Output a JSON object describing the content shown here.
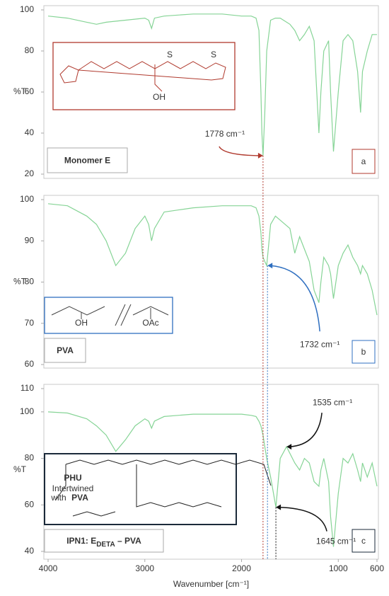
{
  "chart_data": [
    {
      "type": "line",
      "ylabel": "%T",
      "panel_letter": "a",
      "label_parts": [
        "Monomer E"
      ],
      "accent_color": "#b03a2e",
      "xlim": [
        4000,
        600
      ],
      "ylim": [
        20,
        100
      ],
      "yticks": [
        100,
        80,
        60,
        40,
        20
      ],
      "structure_labels": [
        "S",
        "S",
        "OH"
      ],
      "x": [
        4000,
        3800,
        3600,
        3500,
        3400,
        3200,
        3000,
        2960,
        2930,
        2900,
        2800,
        2500,
        2200,
        2000,
        1900,
        1850,
        1820,
        1800,
        1790,
        1778,
        1760,
        1740,
        1700,
        1650,
        1600,
        1500,
        1450,
        1400,
        1350,
        1300,
        1250,
        1200,
        1180,
        1150,
        1100,
        1080,
        1050,
        1000,
        950,
        900,
        850,
        800,
        770,
        750,
        700,
        650,
        600
      ],
      "series": [
        {
          "color": "#86d496",
          "values": [
            97,
            96,
            94,
            93,
            94,
            95,
            96,
            95,
            91,
            96,
            97,
            98,
            98,
            97,
            97,
            96,
            90,
            60,
            40,
            29,
            50,
            80,
            95,
            96,
            96,
            93,
            90,
            85,
            88,
            92,
            85,
            40,
            60,
            80,
            85,
            60,
            31,
            60,
            85,
            88,
            85,
            70,
            50,
            70,
            80,
            88,
            88
          ]
        }
      ],
      "annotations": [
        {
          "label": "1778 cm⁻¹",
          "x": 1778,
          "y": 29,
          "color": "#b03a2e",
          "dashed_guide": true
        }
      ]
    },
    {
      "type": "line",
      "ylabel": "%T",
      "panel_letter": "b",
      "label_parts": [
        "PVA"
      ],
      "accent_color": "#2f6fc0",
      "xlim": [
        4000,
        600
      ],
      "ylim": [
        60,
        100
      ],
      "yticks": [
        100,
        90,
        80,
        70,
        60
      ],
      "structure_labels": [
        "OH",
        "OAc"
      ],
      "x": [
        4000,
        3800,
        3600,
        3500,
        3400,
        3300,
        3200,
        3100,
        3000,
        2960,
        2930,
        2900,
        2800,
        2500,
        2200,
        2000,
        1900,
        1850,
        1820,
        1800,
        1790,
        1778,
        1760,
        1740,
        1700,
        1650,
        1600,
        1500,
        1450,
        1400,
        1350,
        1300,
        1250,
        1200,
        1180,
        1150,
        1100,
        1080,
        1050,
        1000,
        950,
        900,
        850,
        800,
        770,
        750,
        700,
        650,
        600
      ],
      "series": [
        {
          "color": "#86d496",
          "values": [
            99,
            98.5,
            96,
            94,
            90,
            84,
            87,
            93,
            96,
            94,
            90,
            93,
            97,
            98,
            98.5,
            98.5,
            98.5,
            98,
            96,
            92,
            88,
            86,
            85,
            84,
            94,
            96,
            95,
            93,
            87,
            91,
            88,
            85,
            78,
            75,
            80,
            86,
            84,
            82,
            76,
            84,
            87,
            89,
            86,
            84,
            82,
            84,
            82,
            78,
            72
          ]
        }
      ],
      "annotations": [
        {
          "label": "1732 cm⁻¹",
          "x": 1732,
          "y": 84,
          "color": "#2f6fc0",
          "dashed_guide": true
        }
      ]
    },
    {
      "type": "line",
      "ylabel": "%T",
      "panel_letter": "c",
      "label_parts": [
        "IPN1:  E",
        "DETA",
        " – PVA"
      ],
      "accent_color": "#1b2a3a",
      "xlabel": "Wavenumber [cm⁻¹]",
      "xlim": [
        4000,
        600
      ],
      "xticks": [
        4000,
        3000,
        2000,
        1000,
        600
      ],
      "ylim": [
        40,
        110
      ],
      "yticks": [
        110,
        100,
        80,
        60,
        40
      ],
      "structure_labels": [
        "PHU",
        "Intertwined",
        "with",
        "PVA"
      ],
      "x": [
        4000,
        3800,
        3600,
        3500,
        3400,
        3300,
        3200,
        3100,
        3000,
        2960,
        2930,
        2900,
        2800,
        2500,
        2200,
        2000,
        1900,
        1850,
        1820,
        1800,
        1790,
        1778,
        1760,
        1740,
        1700,
        1645,
        1600,
        1535,
        1450,
        1400,
        1350,
        1300,
        1250,
        1200,
        1180,
        1150,
        1100,
        1080,
        1050,
        1000,
        950,
        900,
        850,
        800,
        770,
        750,
        700,
        650,
        600
      ],
      "series": [
        {
          "color": "#86d496",
          "values": [
            100,
            99.5,
            97,
            94,
            90,
            83,
            88,
            94,
            97,
            96,
            93,
            96,
            98,
            99,
            99,
            99,
            98.5,
            98,
            96,
            94,
            92,
            90,
            85,
            80,
            72,
            59,
            80,
            85,
            78,
            75,
            80,
            78,
            70,
            68,
            75,
            80,
            70,
            55,
            42,
            65,
            80,
            78,
            82,
            75,
            70,
            78,
            72,
            78,
            68
          ]
        }
      ],
      "annotations": [
        {
          "label": "1535 cm⁻¹",
          "x": 1535,
          "y": 85,
          "color": "#111111",
          "dashed_guide": false
        },
        {
          "label": "1645 cm⁻¹",
          "x": 1645,
          "y": 59,
          "color": "#111111",
          "dashed_guide": true
        }
      ]
    }
  ]
}
